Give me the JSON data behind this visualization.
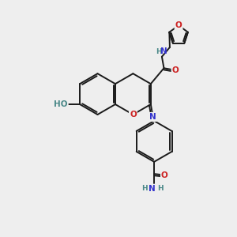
{
  "bg_color": "#eeeeee",
  "bond_color": "#1a1a1a",
  "N_color": "#3333cc",
  "O_color": "#cc2222",
  "H_color": "#4a8888",
  "lw": 1.4,
  "fs": 7.5,
  "xlim": [
    0,
    10
  ],
  "ylim": [
    0,
    10
  ]
}
